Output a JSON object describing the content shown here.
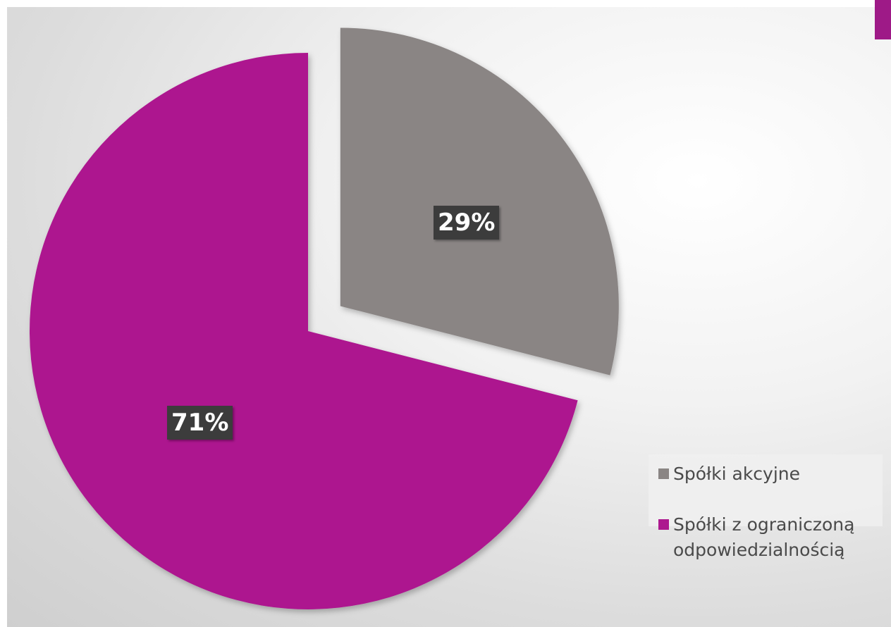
{
  "chart_data": {
    "type": "pie",
    "slices": [
      {
        "label": "Spółki akcyjne",
        "value": 29,
        "display": "29%",
        "color": "#8a8584",
        "exploded": true
      },
      {
        "label": "Spółki z ograniczoną odpowiedzialnością",
        "value": 71,
        "display": "71%",
        "color": "#ad198f",
        "exploded": false
      }
    ],
    "legend": {
      "position": "bottom-right",
      "items": [
        {
          "label": "Spółki akcyjne",
          "color": "#8a8584"
        },
        {
          "label_line1": "Spółki z ograniczoną",
          "label_line2": "odpowiedzialnością",
          "color": "#ad198f"
        }
      ]
    },
    "label_background": "#3c3c3c"
  },
  "theme": {
    "accent": "#9e1a87"
  }
}
